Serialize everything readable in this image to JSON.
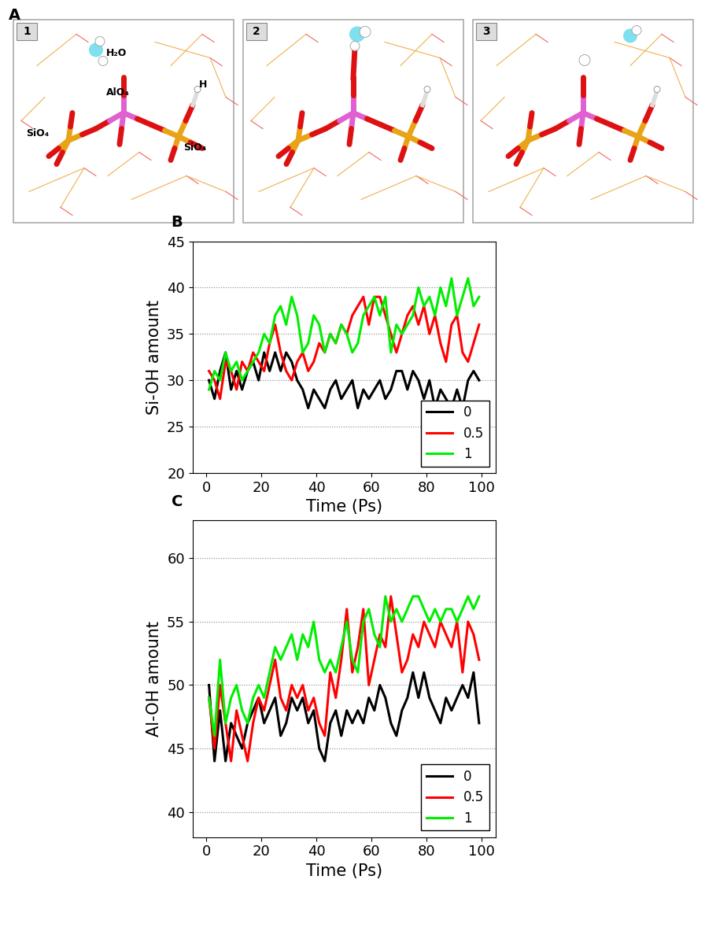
{
  "diagram": {
    "panel_label": "A",
    "frames": [
      {
        "label": "1",
        "texts": {
          "water": "H₂O",
          "hydrogen": "H",
          "center": "AlO₄",
          "left": "SiO₄",
          "right": "SiO₄"
        }
      },
      {
        "label": "2"
      },
      {
        "label": "3"
      }
    ]
  },
  "chart_data": [
    {
      "type": "line",
      "panel_label": "B",
      "x_label": "Time (Ps)",
      "y_label": "Si-OH amount",
      "x": [
        1,
        3,
        5,
        7,
        9,
        11,
        13,
        15,
        17,
        19,
        21,
        23,
        25,
        27,
        29,
        31,
        33,
        35,
        37,
        39,
        41,
        43,
        45,
        47,
        49,
        51,
        53,
        55,
        57,
        59,
        61,
        63,
        65,
        67,
        69,
        71,
        73,
        75,
        77,
        79,
        81,
        83,
        85,
        87,
        89,
        91,
        93,
        95,
        97,
        99
      ],
      "xlim": [
        -5,
        105
      ],
      "xticks": [
        0,
        20,
        40,
        60,
        80,
        100
      ],
      "ylim": [
        20,
        45
      ],
      "yticks": [
        20,
        25,
        30,
        35,
        40,
        45
      ],
      "grid": "y",
      "legend": "lower right",
      "series": [
        {
          "name": "0",
          "color": "#000000",
          "values": [
            30,
            28,
            31,
            33,
            29,
            31,
            29,
            31,
            32,
            30,
            33,
            31,
            33,
            31,
            33,
            32,
            30,
            29,
            27,
            29,
            28,
            27,
            29,
            30,
            28,
            29,
            30,
            27,
            29,
            28,
            29,
            30,
            28,
            29,
            31,
            31,
            29,
            31,
            30,
            28,
            30,
            27,
            29,
            28,
            27,
            29,
            27,
            30,
            31,
            30
          ]
        },
        {
          "name": "0.5",
          "color": "#ff0000",
          "values": [
            31,
            30,
            28,
            32,
            31,
            29,
            32,
            31,
            33,
            32,
            31,
            34,
            36,
            33,
            31,
            30,
            32,
            33,
            31,
            32,
            34,
            33,
            35,
            34,
            36,
            35,
            37,
            38,
            39,
            36,
            39,
            39,
            37,
            35,
            33,
            35,
            37,
            38,
            36,
            38,
            35,
            37,
            34,
            32,
            36,
            37,
            33,
            32,
            34,
            36
          ]
        },
        {
          "name": "1",
          "color": "#00ee00",
          "values": [
            29,
            31,
            30,
            33,
            31,
            32,
            30,
            31,
            32,
            33,
            35,
            34,
            37,
            38,
            36,
            39,
            37,
            33,
            34,
            37,
            36,
            33,
            35,
            34,
            36,
            35,
            33,
            34,
            37,
            38,
            39,
            37,
            39,
            33,
            36,
            35,
            36,
            37,
            40,
            38,
            39,
            37,
            40,
            38,
            41,
            37,
            39,
            41,
            38,
            39
          ]
        }
      ]
    },
    {
      "type": "line",
      "panel_label": "C",
      "x_label": "Time (Ps)",
      "y_label": "Al-OH amount",
      "x": [
        1,
        3,
        5,
        7,
        9,
        11,
        13,
        15,
        17,
        19,
        21,
        23,
        25,
        27,
        29,
        31,
        33,
        35,
        37,
        39,
        41,
        43,
        45,
        47,
        49,
        51,
        53,
        55,
        57,
        59,
        61,
        63,
        65,
        67,
        69,
        71,
        73,
        75,
        77,
        79,
        81,
        83,
        85,
        87,
        89,
        91,
        93,
        95,
        97,
        99
      ],
      "xlim": [
        -5,
        105
      ],
      "xticks": [
        0,
        20,
        40,
        60,
        80,
        100
      ],
      "ylim": [
        38,
        63
      ],
      "yticks": [
        40,
        45,
        50,
        55,
        60
      ],
      "grid": "y",
      "legend": "lower right",
      "series": [
        {
          "name": "0",
          "color": "#000000",
          "values": [
            50,
            44,
            48,
            44,
            47,
            46,
            45,
            47,
            48,
            49,
            47,
            48,
            49,
            46,
            47,
            49,
            48,
            49,
            47,
            48,
            45,
            44,
            47,
            48,
            46,
            48,
            47,
            48,
            47,
            49,
            48,
            50,
            49,
            47,
            46,
            48,
            49,
            51,
            49,
            51,
            49,
            48,
            47,
            49,
            48,
            49,
            50,
            49,
            51,
            47
          ]
        },
        {
          "name": "0.5",
          "color": "#ff0000",
          "values": [
            49,
            45,
            50,
            47,
            44,
            48,
            46,
            44,
            47,
            49,
            48,
            50,
            52,
            49,
            48,
            50,
            49,
            50,
            48,
            49,
            47,
            46,
            51,
            49,
            52,
            56,
            51,
            53,
            56,
            50,
            52,
            54,
            53,
            57,
            54,
            51,
            52,
            54,
            53,
            55,
            54,
            53,
            55,
            54,
            53,
            55,
            51,
            55,
            54,
            52
          ]
        },
        {
          "name": "1",
          "color": "#00ee00",
          "values": [
            49,
            46,
            52,
            47,
            49,
            50,
            48,
            47,
            49,
            50,
            49,
            51,
            53,
            52,
            53,
            54,
            52,
            54,
            53,
            55,
            52,
            51,
            52,
            51,
            53,
            55,
            52,
            51,
            55,
            56,
            54,
            53,
            57,
            55,
            56,
            55,
            56,
            57,
            57,
            56,
            55,
            56,
            55,
            56,
            56,
            55,
            56,
            57,
            56,
            57
          ]
        }
      ]
    }
  ]
}
